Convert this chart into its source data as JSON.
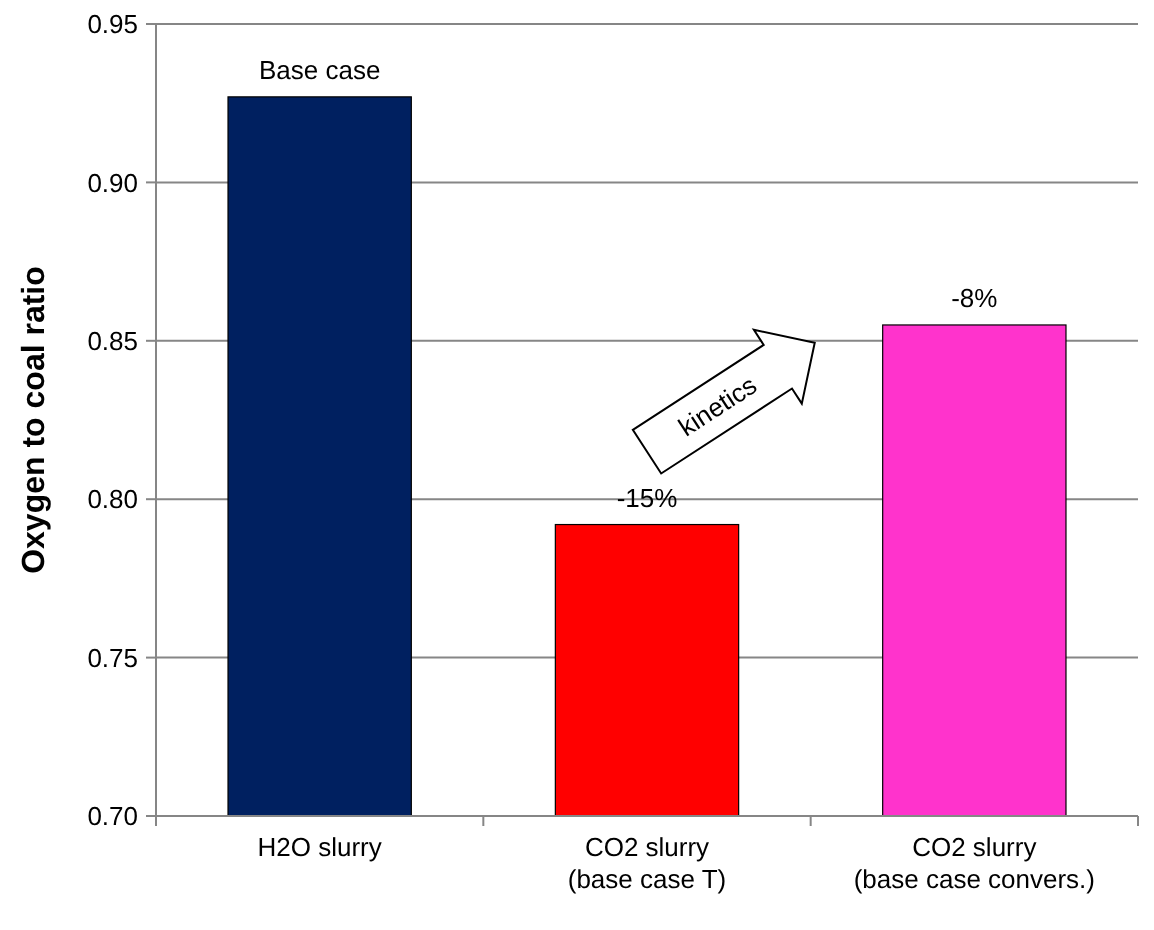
{
  "chart_data": {
    "type": "bar",
    "ylabel": "Oxygen  to coal ratio",
    "categories": [
      "H2O slurry",
      "CO2 slurry\n(base case T)",
      "CO2 slurry\n(base case convers.)"
    ],
    "values": [
      0.927,
      0.792,
      0.855
    ],
    "colors": [
      "#002060",
      "#ff0000",
      "#ff33cc"
    ],
    "ylim": [
      0.7,
      0.95
    ],
    "yticks": [
      {
        "value": 0.7,
        "label": "0.70"
      },
      {
        "value": 0.75,
        "label": "0.75"
      },
      {
        "value": 0.8,
        "label": "0.80"
      },
      {
        "value": 0.85,
        "label": "0.85"
      },
      {
        "value": 0.9,
        "label": "0.90"
      },
      {
        "value": 0.95,
        "label": "0.95"
      }
    ],
    "grid": "y",
    "annotations": [
      {
        "text": "Base case",
        "x": "H2O slurry",
        "y": 0.927
      },
      {
        "text": "-15%",
        "x": "CO2 slurry\n(base case T)",
        "y": 0.792
      },
      {
        "text": "-8%",
        "x": "CO2 slurry\n(base case convers.)",
        "y": 0.855
      },
      "kinetics"
    ]
  }
}
